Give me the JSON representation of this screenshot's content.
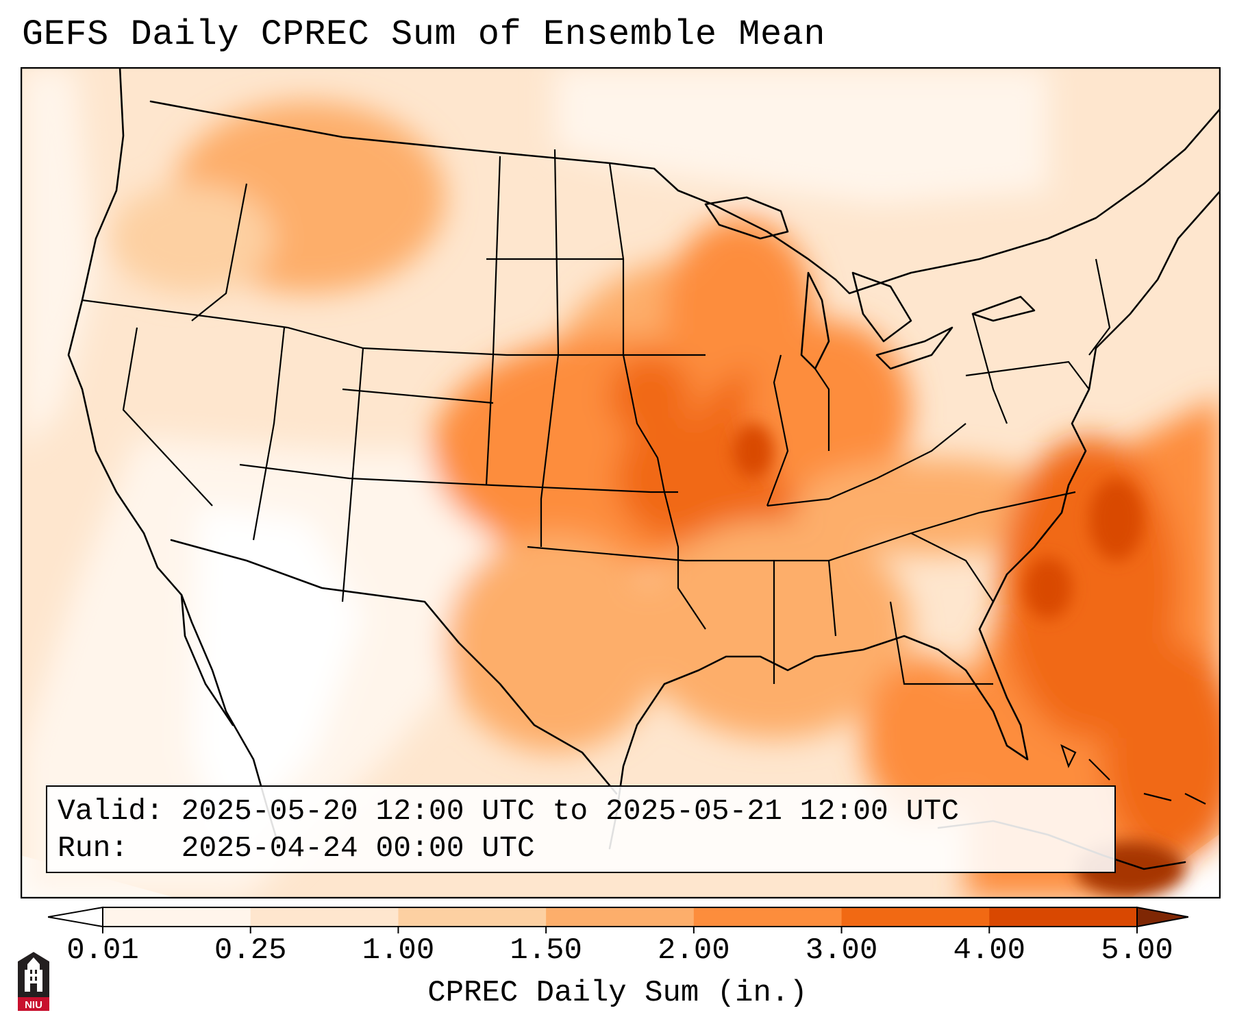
{
  "title": "GEFS Daily CPREC Sum of Ensemble Mean",
  "valid": {
    "label": "Valid:",
    "text": "2025-05-20 12:00 UTC to 2025-05-21 12:00 UTC"
  },
  "run": {
    "label": "Run:",
    "text": "2025-04-24 00:00 UTC"
  },
  "colorbar": {
    "label": "CPREC Daily Sum (in.)",
    "ticks": [
      "0.01",
      "0.25",
      "1.00",
      "1.50",
      "2.00",
      "3.00",
      "4.00",
      "5.00"
    ],
    "colors": [
      "#fff5eb",
      "#fee6ce",
      "#fdd0a2",
      "#fdae6b",
      "#fd8d3c",
      "#f16913",
      "#d94801",
      "#a63603"
    ],
    "under_color": "#ffffff",
    "over_color": "#7f2704"
  },
  "logo": {
    "text": "NIU",
    "colors": {
      "red": "#c8102e",
      "dark": "#231f20"
    }
  },
  "map": {
    "projection": "Lambert conformal (CONUS)",
    "layers": [
      "precipitation-field",
      "coastlines",
      "country-borders",
      "state-borders"
    ]
  }
}
